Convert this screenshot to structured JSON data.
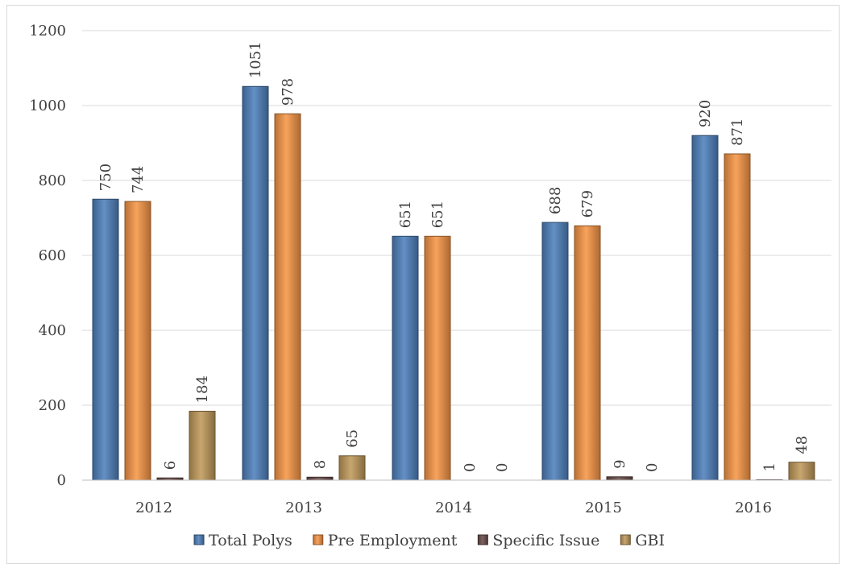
{
  "chart_data": {
    "type": "bar",
    "categories": [
      "2012",
      "2013",
      "2014",
      "2015",
      "2016"
    ],
    "series": [
      {
        "name": "Total Polys",
        "color": "#4f81bd",
        "values": [
          750,
          1051,
          651,
          688,
          920
        ]
      },
      {
        "name": "Pre Employment",
        "color": "#f79646",
        "values": [
          744,
          978,
          651,
          679,
          871
        ]
      },
      {
        "name": "Specific Issue",
        "color": "#6b4e4a",
        "values": [
          6,
          8,
          0,
          9,
          1
        ]
      },
      {
        "name": "GBI",
        "color": "#c19a5b",
        "values": [
          184,
          65,
          0,
          0,
          48
        ]
      }
    ],
    "ylim": [
      0,
      1200
    ],
    "yticks": [
      0,
      200,
      400,
      600,
      800,
      1000,
      1200
    ],
    "grid": true,
    "legend_position": "bottom",
    "data_labels": true,
    "data_label_orientation": "vertical"
  }
}
